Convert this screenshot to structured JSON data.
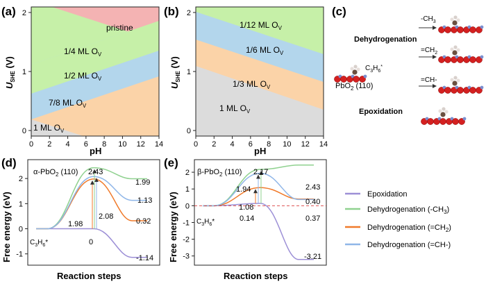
{
  "panels": {
    "a": {
      "label": "(a)"
    },
    "b": {
      "label": "(b)"
    },
    "c": {
      "label": "(c)"
    },
    "d": {
      "label": "(d)"
    },
    "e": {
      "label": "(e)"
    }
  },
  "phase_diagram": {
    "y_axis_label": "U",
    "y_axis_sub": "SHE",
    "y_axis_unit": " (V)",
    "x_axis_label": "pH",
    "x_ticks": [
      "0",
      "2",
      "4",
      "6",
      "8",
      "10",
      "12",
      "14"
    ],
    "y_ticks": [
      "0",
      "1",
      "2"
    ]
  },
  "panel_a_regions": {
    "pristine": "pristine",
    "q14": "1/4 ML O",
    "q12": "1/2 ML O",
    "q78": "7/8 ML O",
    "q1": "1 ML O",
    "sub": "V"
  },
  "panel_b_regions": {
    "q112": "1/12 ML O",
    "q16": "1/6 ML O",
    "q13": "1/3 ML O",
    "q1": "1 ML O",
    "sub": "V"
  },
  "panel_c": {
    "dehydrogenation": "Dehydrogenation",
    "epoxidation": "Epoxidation",
    "substrate": "PbO",
    "substrate_sub": "2",
    "substrate_tail": " (110)",
    "adsorbate": "C",
    "adsorbate_n1": "3",
    "adsorbate_mid": "H",
    "adsorbate_n2": "6",
    "adsorbate_star": "*",
    "arrow_ch3": "-CH",
    "arrow_ch3_sub": "3",
    "arrow_ch2": "=CH",
    "arrow_ch2_sub": "2",
    "arrow_ch": "=CH-"
  },
  "energy_profiles": {
    "y_label": "Free energy (eV)",
    "x_label": "Reaction steps",
    "start_label": "C",
    "start_n1": "3",
    "start_mid": "H",
    "start_n2": "6",
    "start_star": "*"
  },
  "panel_d": {
    "title": "α-PbO",
    "title_sub": "2",
    "title_tail": " (110)",
    "y_ticks": [
      "-1",
      "0",
      "1",
      "2"
    ],
    "values": {
      "ts_top": "2.43",
      "ts_barrier_left": "1.98",
      "ts_barrier_right": "2.08",
      "zero": "0",
      "final_ch3": "1.99",
      "final_ch2": "1.13",
      "final_ch": "0.32",
      "final_epox": "-1.14"
    }
  },
  "panel_e": {
    "title": "β-PbO",
    "title_sub": "2",
    "title_tail": " (110)",
    "y_ticks": [
      "-3",
      "-2",
      "-1",
      "0",
      "1",
      "2"
    ],
    "values": {
      "ts_top": "2.17",
      "ts_mid": "1.94",
      "ts_low": "1.08",
      "ts_base": "0.14",
      "final_ch3": "2.43",
      "final_ch2": "0.40",
      "final_ch": "0.37",
      "final_epox": "-3.21"
    }
  },
  "legend": {
    "items": [
      {
        "label": "Epoxidation",
        "color": "#9c8fd6"
      },
      {
        "label": "Dehydrogenation (-CH",
        "sub": "3",
        "tail": ")",
        "color": "#8fd18f"
      },
      {
        "label": "Dehydrogenation (=CH",
        "sub": "2",
        "tail": ")",
        "color": "#f07a2a"
      },
      {
        "label": "Dehydrogenation (=CH-)",
        "sub": "",
        "tail": "",
        "color": "#8fb6e8"
      }
    ]
  },
  "colors": {
    "pristine": "#f4b3b3",
    "green": "#c6f0a8",
    "blue": "#b3d6ec",
    "orange": "#fbd3a8",
    "gray": "#dcdcdc",
    "epox": "#9c8fd6",
    "ch3": "#8fd18f",
    "ch2": "#f07a2a",
    "ch": "#8fb6e8",
    "oxygen": "#d42020",
    "lead": "#7a8fd0"
  }
}
